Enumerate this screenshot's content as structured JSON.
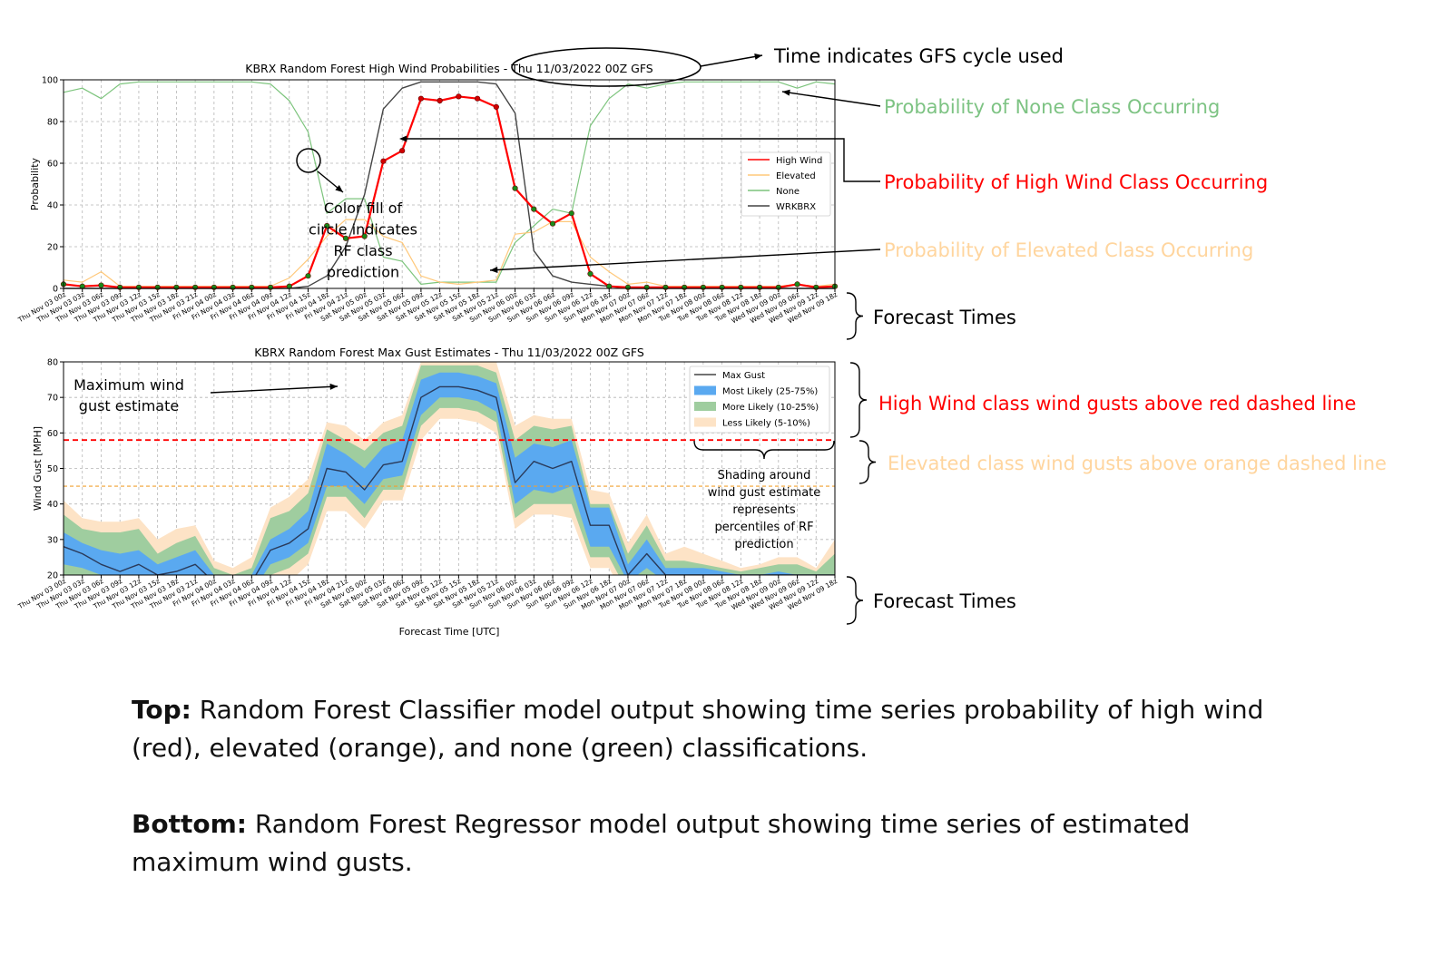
{
  "colors": {
    "high": "#ff0000",
    "elevated": "#ffc87a",
    "none": "#7cc47c",
    "wrk": "#444444",
    "most": "#5aa9f0",
    "more": "#9fcd9f",
    "less": "#fde3c6",
    "annot_none": "#7dc383",
    "annot_high": "#ff0000",
    "annot_elev": "#ffd59e"
  },
  "x_ticks": [
    "Thu Nov 03 00z",
    "Thu Nov 03 03z",
    "Thu Nov 03 06z",
    "Thu Nov 03 09z",
    "Thu Nov 03 12z",
    "Thu Nov 03 15z",
    "Thu Nov 03 18z",
    "Thu Nov 03 21z",
    "Fri Nov 04 00z",
    "Fri Nov 04 03z",
    "Fri Nov 04 06z",
    "Fri Nov 04 09z",
    "Fri Nov 04 12z",
    "Fri Nov 04 15z",
    "Fri Nov 04 18z",
    "Fri Nov 04 21z",
    "Sat Nov 05 00z",
    "Sat Nov 05 03z",
    "Sat Nov 05 06z",
    "Sat Nov 05 09z",
    "Sat Nov 05 12z",
    "Sat Nov 05 15z",
    "Sat Nov 05 18z",
    "Sat Nov 05 21z",
    "Sun Nov 06 00z",
    "Sun Nov 06 03z",
    "Sun Nov 06 06z",
    "Sun Nov 06 09z",
    "Sun Nov 06 12z",
    "Sun Nov 06 18z",
    "Mon Nov 07 00z",
    "Mon Nov 07 06z",
    "Mon Nov 07 12z",
    "Mon Nov 07 18z",
    "Tue Nov 08 00z",
    "Tue Nov 08 06z",
    "Tue Nov 08 12z",
    "Tue Nov 08 18z",
    "Wed Nov 09 00z",
    "Wed Nov 09 06z",
    "Wed Nov 09 12z",
    "Wed Nov 09 18z"
  ],
  "x_ticks_bottom": [
    "Thu Nov 03 00z",
    "Thu Nov 03 03z",
    "Thu Nov 03 06z",
    "Thu Nov 03 09z",
    "Thu Nov 03 12z",
    "Thu Nov 03 15z",
    "Thu Nov 03 18z",
    "Thu Nov 03 21z",
    "Fri Nov 04 00z",
    "Fri Nov 04 03z",
    "Fri Nov 04 06z",
    "Fri Nov 04 09z",
    "Fri Nov 04 12z",
    "Fri Nov 04 15z",
    "Fri Nov 04 18z",
    "Fri Nov 04 21z",
    "Sat Nov 05 00z",
    "Sat Nov 05 03z",
    "Sat Nov 05 06z",
    "Sat Nov 05 09z",
    "Sat Nov 05 12z",
    "Sat Nov 05 15z",
    "Sat Nov 05 18z",
    "Sat Nov 05 21z",
    "Sun Nov 06 00z",
    "Sun Nov 06 03z",
    "Sun Nov 06 06z",
    "Sun Nov 06 09z",
    "Sun Nov 06 12z",
    "Sun Nov 06 18z",
    "Mon Nov 07 00z",
    "Mon Nov 07 06z",
    "Mon Nov 07 12z",
    "Mon Nov 07 18z",
    "Tue Nov 08 00z",
    "Tue Nov 08 06z",
    "Tue Nov 08 12z",
    "Tue Nov 08 18z",
    "Wed Nov 09 00z",
    "Wed Nov 09 06z",
    "Wed Nov 09 12z",
    "Wed Nov 09 18z"
  ],
  "chart_data": [
    {
      "type": "line",
      "title": "KBRX Random Forest High Wind Probabilities - Thu  11/03/2022  00Z GFS",
      "xlabel": "",
      "ylabel": "Probability",
      "ylim": [
        0,
        100
      ],
      "yticks": [
        0,
        20,
        40,
        60,
        80,
        100
      ],
      "grid": true,
      "legend": "right",
      "legend_entries": [
        "High Wind",
        "Elevated",
        "None",
        "WRKBRX"
      ],
      "series": [
        {
          "name": "High Wind",
          "markers": true,
          "values": [
            2,
            1,
            1.5,
            0.5,
            0.5,
            0.5,
            0.5,
            0.5,
            0.5,
            0.5,
            0.5,
            0.5,
            1,
            6,
            30,
            24,
            25,
            61,
            66,
            91,
            90,
            92,
            91,
            87,
            48,
            38,
            31,
            36,
            7,
            1,
            0.5,
            0.5,
            0.5,
            0.5,
            0.5,
            0.5,
            0.5,
            0.5,
            0.5,
            2,
            0.5,
            1
          ]
        },
        {
          "name": "Elevated",
          "values": [
            4,
            3,
            8,
            1,
            1,
            1,
            1,
            1,
            1,
            1,
            1,
            1,
            5,
            14,
            25,
            33,
            33,
            25,
            22,
            6,
            3,
            2,
            3,
            4,
            26,
            27,
            32,
            32,
            15,
            8,
            2,
            3,
            1,
            1,
            1,
            1,
            1,
            1,
            1,
            2,
            1,
            2
          ]
        },
        {
          "name": "None",
          "values": [
            94,
            96,
            91,
            98,
            99,
            99,
            99,
            99,
            99,
            99,
            99,
            98,
            90,
            75,
            36,
            43,
            43,
            15,
            13,
            2,
            3,
            3,
            3,
            3,
            22,
            30,
            38,
            36,
            78,
            91,
            98,
            96,
            98,
            99,
            99,
            99,
            99,
            99,
            99,
            96,
            99,
            98
          ]
        },
        {
          "name": "WRKBRX",
          "values": [
            0,
            0,
            0,
            0,
            0,
            0,
            0,
            0,
            0,
            0,
            0,
            0,
            0,
            1,
            6,
            20,
            45,
            86,
            96,
            99,
            99,
            99,
            99,
            98,
            84,
            18,
            6,
            3,
            2,
            1,
            0,
            0,
            0,
            0,
            0,
            0,
            0,
            0,
            0,
            0,
            0,
            0
          ]
        }
      ]
    },
    {
      "type": "area",
      "title": "KBRX Random Forest Max Gust Estimates - Thu  11/03/2022  00Z GFS",
      "xlabel": "Forecast Time [UTC]",
      "ylabel": "Wind Gust [MPH]",
      "ylim": [
        20,
        80
      ],
      "yticks": [
        20,
        30,
        40,
        50,
        60,
        70,
        80
      ],
      "grid": true,
      "legend": "top-right",
      "legend_entries": [
        "Max Gust",
        "Most Likely (25-75%)",
        "More Likely (10-25%)",
        "Less Likely (5-10%)"
      ],
      "thresholds": [
        {
          "value": 58,
          "color": "#ff0000",
          "style": "dashed"
        },
        {
          "value": 45,
          "color": "#f0a030",
          "style": "dashed"
        }
      ],
      "max_gust": [
        28,
        26,
        23,
        21,
        23,
        20,
        21,
        23,
        18,
        16,
        18,
        27,
        29,
        33,
        50,
        49,
        44,
        51,
        52,
        70,
        73,
        73,
        72,
        70,
        46,
        52,
        50,
        52,
        34,
        34,
        20,
        26,
        20,
        20,
        20,
        20,
        20,
        20,
        20,
        20,
        20,
        20
      ],
      "most_low": [
        23,
        22,
        20,
        19,
        20,
        18,
        19,
        20,
        16,
        15,
        15,
        23,
        25,
        29,
        45,
        45,
        40,
        47,
        48,
        65,
        70,
        70,
        69,
        66,
        40,
        44,
        43,
        45,
        28,
        28,
        18,
        22,
        18,
        18,
        18,
        18,
        18,
        18,
        19,
        18,
        18,
        18
      ],
      "most_high": [
        32,
        29,
        27,
        26,
        27,
        23,
        25,
        27,
        20,
        18,
        20,
        30,
        33,
        38,
        57,
        54,
        50,
        56,
        58,
        75,
        77,
        77,
        76,
        74,
        53,
        57,
        56,
        58,
        39,
        39,
        23,
        30,
        22,
        22,
        22,
        21,
        20,
        20,
        21,
        20,
        20,
        20
      ],
      "more_low": [
        20,
        18,
        16,
        16,
        17,
        15,
        15,
        17,
        13,
        12,
        13,
        20,
        22,
        26,
        42,
        42,
        36,
        44,
        44,
        62,
        67,
        67,
        66,
        63,
        36,
        40,
        40,
        40,
        25,
        25,
        15,
        18,
        16,
        16,
        16,
        16,
        16,
        16,
        17,
        16,
        16,
        16
      ],
      "more_high": [
        37,
        33,
        32,
        32,
        33,
        26,
        29,
        31,
        22,
        20,
        22,
        36,
        38,
        43,
        61,
        58,
        55,
        60,
        62,
        79,
        79,
        79,
        79,
        77,
        58,
        62,
        61,
        62,
        40,
        40,
        26,
        34,
        24,
        24,
        23,
        22,
        21,
        22,
        23,
        23,
        21,
        26
      ],
      "less_low": [
        16,
        15,
        13,
        13,
        14,
        12,
        12,
        14,
        10,
        9,
        10,
        17,
        18,
        23,
        38,
        38,
        33,
        41,
        41,
        58,
        64,
        64,
        63,
        60,
        33,
        37,
        37,
        36,
        22,
        22,
        12,
        15,
        13,
        13,
        13,
        13,
        13,
        13,
        14,
        13,
        13,
        13
      ],
      "less_high": [
        41,
        36,
        35,
        35,
        36,
        30,
        33,
        34,
        24,
        22,
        25,
        39,
        42,
        47,
        63,
        62,
        58,
        63,
        65,
        80,
        80,
        80,
        80,
        80,
        62,
        65,
        64,
        64,
        44,
        43,
        29,
        37,
        26,
        28,
        26,
        24,
        22,
        23,
        25,
        25,
        22,
        30
      ]
    }
  ],
  "annotations": {
    "gfs_cycle": "Time indicates GFS cycle used",
    "none_class": "Probability of None Class Occurring",
    "high_class": "Probability of High Wind Class Occurring",
    "elev_class": "Probability of Elevated Class Occurring",
    "circle_note": [
      "Color fill of",
      "circle indicates",
      "RF class",
      "prediction"
    ],
    "forecast_times_top": "Forecast Times",
    "forecast_times_bottom": "Forecast Times",
    "max_gust_note": [
      "Maximum wind",
      "gust estimate"
    ],
    "high_wind_gusts": "High Wind class wind gusts above red dashed line",
    "elev_gusts": "Elevated class wind gusts above orange dashed line",
    "shading_note": [
      "Shading around",
      "wind gust estimate",
      "represents",
      "percentiles of RF",
      "prediction"
    ]
  },
  "caption": {
    "top_label": "Top:",
    "top_text": " Random Forest Classifier model output showing time series probability of high wind (red), elevated (orange), and none (green) classifications.",
    "bottom_label": "Bottom:",
    "bottom_text": " Random Forest Regressor model output showing time series of estimated maximum wind gusts."
  }
}
